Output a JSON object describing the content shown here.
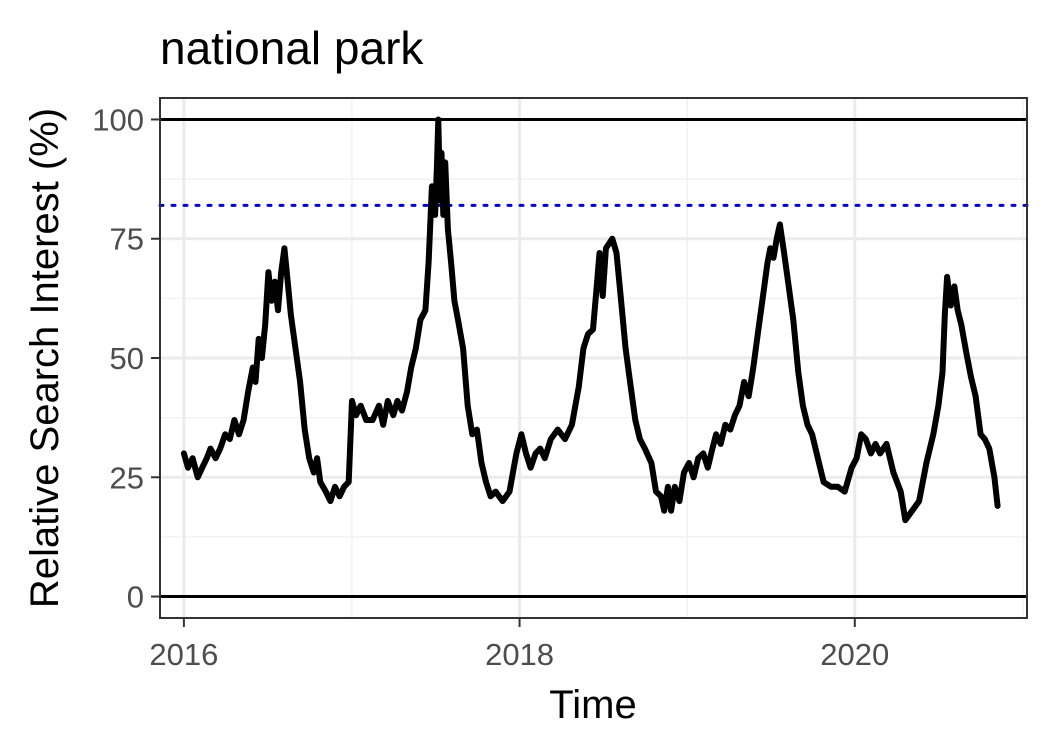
{
  "chart_data": {
    "type": "line",
    "title": "national park",
    "xlabel": "Time",
    "ylabel": "Relative Search Interest (%)",
    "xlim": [
      "2015-11-10",
      "2021-01-10"
    ],
    "ylim": [
      -4.5,
      104.5
    ],
    "x_ticks": [
      {
        "value": "2016-01-01",
        "label": "2016"
      },
      {
        "value": "2018-01-01",
        "label": "2018"
      },
      {
        "value": "2020-01-01",
        "label": "2020"
      }
    ],
    "y_ticks": [
      {
        "value": 0,
        "label": "0"
      },
      {
        "value": 25,
        "label": "25"
      },
      {
        "value": 50,
        "label": "50"
      },
      {
        "value": 75,
        "label": "75"
      },
      {
        "value": 100,
        "label": "100"
      }
    ],
    "reference_lines": [
      {
        "y": 100,
        "style": "solid",
        "color": "#000000"
      },
      {
        "y": 0,
        "style": "solid",
        "color": "#000000"
      },
      {
        "y": 82,
        "style": "dotted",
        "color": "#0000cc"
      }
    ],
    "grid": true,
    "series": [
      {
        "color": "#000000",
        "points": [
          [
            "2016-01-01",
            30
          ],
          [
            "2016-01-10",
            27
          ],
          [
            "2016-01-20",
            29
          ],
          [
            "2016-01-31",
            25
          ],
          [
            "2016-02-10",
            27
          ],
          [
            "2016-02-20",
            29
          ],
          [
            "2016-02-28",
            31
          ],
          [
            "2016-03-10",
            29
          ],
          [
            "2016-03-20",
            31
          ],
          [
            "2016-03-31",
            34
          ],
          [
            "2016-04-10",
            33
          ],
          [
            "2016-04-20",
            37
          ],
          [
            "2016-04-30",
            34
          ],
          [
            "2016-05-10",
            37
          ],
          [
            "2016-05-20",
            43
          ],
          [
            "2016-05-30",
            48
          ],
          [
            "2016-06-05",
            45
          ],
          [
            "2016-06-12",
            54
          ],
          [
            "2016-06-19",
            50
          ],
          [
            "2016-06-26",
            57
          ],
          [
            "2016-07-03",
            68
          ],
          [
            "2016-07-10",
            62
          ],
          [
            "2016-07-17",
            66
          ],
          [
            "2016-07-24",
            60
          ],
          [
            "2016-07-31",
            68
          ],
          [
            "2016-08-07",
            73
          ],
          [
            "2016-08-14",
            66
          ],
          [
            "2016-08-21",
            59
          ],
          [
            "2016-08-31",
            52
          ],
          [
            "2016-09-10",
            45
          ],
          [
            "2016-09-20",
            35
          ],
          [
            "2016-09-30",
            29
          ],
          [
            "2016-10-10",
            26
          ],
          [
            "2016-10-17",
            29
          ],
          [
            "2016-10-24",
            24
          ],
          [
            "2016-11-05",
            22
          ],
          [
            "2016-11-15",
            20
          ],
          [
            "2016-11-25",
            23
          ],
          [
            "2016-12-05",
            21
          ],
          [
            "2016-12-15",
            23
          ],
          [
            "2016-12-25",
            24
          ],
          [
            "2017-01-01",
            41
          ],
          [
            "2017-01-10",
            38
          ],
          [
            "2017-01-20",
            40
          ],
          [
            "2017-02-01",
            37
          ],
          [
            "2017-02-15",
            37
          ],
          [
            "2017-03-01",
            40
          ],
          [
            "2017-03-10",
            36
          ],
          [
            "2017-03-20",
            41
          ],
          [
            "2017-04-01",
            38
          ],
          [
            "2017-04-10",
            41
          ],
          [
            "2017-04-20",
            39
          ],
          [
            "2017-05-01",
            43
          ],
          [
            "2017-05-10",
            48
          ],
          [
            "2017-05-20",
            52
          ],
          [
            "2017-05-30",
            58
          ],
          [
            "2017-06-10",
            60
          ],
          [
            "2017-06-17",
            70
          ],
          [
            "2017-06-24",
            86
          ],
          [
            "2017-07-01",
            80
          ],
          [
            "2017-07-05",
            90
          ],
          [
            "2017-07-08",
            100
          ],
          [
            "2017-07-12",
            83
          ],
          [
            "2017-07-15",
            93
          ],
          [
            "2017-07-19",
            80
          ],
          [
            "2017-07-23",
            91
          ],
          [
            "2017-07-29",
            77
          ],
          [
            "2017-08-05",
            70
          ],
          [
            "2017-08-12",
            62
          ],
          [
            "2017-08-20",
            58
          ],
          [
            "2017-08-31",
            52
          ],
          [
            "2017-09-10",
            40
          ],
          [
            "2017-09-20",
            34
          ],
          [
            "2017-09-30",
            35
          ],
          [
            "2017-10-10",
            28
          ],
          [
            "2017-10-20",
            24
          ],
          [
            "2017-10-30",
            21
          ],
          [
            "2017-11-10",
            22
          ],
          [
            "2017-11-25",
            20
          ],
          [
            "2017-12-10",
            22
          ],
          [
            "2017-12-25",
            30
          ],
          [
            "2018-01-05",
            34
          ],
          [
            "2018-01-15",
            30
          ],
          [
            "2018-01-25",
            27
          ],
          [
            "2018-02-05",
            30
          ],
          [
            "2018-02-15",
            31
          ],
          [
            "2018-02-25",
            29
          ],
          [
            "2018-03-10",
            33
          ],
          [
            "2018-03-25",
            35
          ],
          [
            "2018-04-10",
            33
          ],
          [
            "2018-04-25",
            36
          ],
          [
            "2018-05-10",
            44
          ],
          [
            "2018-05-20",
            52
          ],
          [
            "2018-05-30",
            55
          ],
          [
            "2018-06-10",
            56
          ],
          [
            "2018-06-17",
            64
          ],
          [
            "2018-06-24",
            72
          ],
          [
            "2018-07-01",
            63
          ],
          [
            "2018-07-08",
            73
          ],
          [
            "2018-07-15",
            74
          ],
          [
            "2018-07-22",
            75
          ],
          [
            "2018-07-31",
            72
          ],
          [
            "2018-08-10",
            62
          ],
          [
            "2018-08-20",
            52
          ],
          [
            "2018-08-31",
            44
          ],
          [
            "2018-09-10",
            37
          ],
          [
            "2018-09-20",
            33
          ],
          [
            "2018-10-01",
            31
          ],
          [
            "2018-10-15",
            28
          ],
          [
            "2018-10-25",
            22
          ],
          [
            "2018-11-05",
            21
          ],
          [
            "2018-11-12",
            18
          ],
          [
            "2018-11-20",
            23
          ],
          [
            "2018-11-27",
            18
          ],
          [
            "2018-12-05",
            23
          ],
          [
            "2018-12-15",
            20
          ],
          [
            "2018-12-25",
            26
          ],
          [
            "2019-01-05",
            28
          ],
          [
            "2019-01-15",
            25
          ],
          [
            "2019-01-25",
            29
          ],
          [
            "2019-02-05",
            30
          ],
          [
            "2019-02-15",
            27
          ],
          [
            "2019-02-25",
            31
          ],
          [
            "2019-03-05",
            34
          ],
          [
            "2019-03-15",
            32
          ],
          [
            "2019-03-25",
            36
          ],
          [
            "2019-04-05",
            35
          ],
          [
            "2019-04-15",
            38
          ],
          [
            "2019-04-25",
            40
          ],
          [
            "2019-05-05",
            45
          ],
          [
            "2019-05-15",
            42
          ],
          [
            "2019-05-25",
            48
          ],
          [
            "2019-06-05",
            56
          ],
          [
            "2019-06-15",
            63
          ],
          [
            "2019-06-25",
            70
          ],
          [
            "2019-07-01",
            73
          ],
          [
            "2019-07-08",
            71
          ],
          [
            "2019-07-15",
            75
          ],
          [
            "2019-07-22",
            78
          ],
          [
            "2019-07-31",
            72
          ],
          [
            "2019-08-10",
            65
          ],
          [
            "2019-08-20",
            58
          ],
          [
            "2019-08-31",
            47
          ],
          [
            "2019-09-10",
            40
          ],
          [
            "2019-09-20",
            36
          ],
          [
            "2019-09-30",
            34
          ],
          [
            "2019-10-10",
            30
          ],
          [
            "2019-10-25",
            24
          ],
          [
            "2019-11-10",
            23
          ],
          [
            "2019-11-25",
            23
          ],
          [
            "2019-12-10",
            22
          ],
          [
            "2019-12-25",
            27
          ],
          [
            "2020-01-05",
            29
          ],
          [
            "2020-01-15",
            34
          ],
          [
            "2020-01-25",
            33
          ],
          [
            "2020-02-05",
            30
          ],
          [
            "2020-02-15",
            32
          ],
          [
            "2020-02-25",
            30
          ],
          [
            "2020-03-10",
            32
          ],
          [
            "2020-03-25",
            26
          ],
          [
            "2020-04-10",
            22
          ],
          [
            "2020-04-20",
            16
          ],
          [
            "2020-05-05",
            18
          ],
          [
            "2020-05-20",
            20
          ],
          [
            "2020-06-05",
            28
          ],
          [
            "2020-06-20",
            34
          ],
          [
            "2020-07-01",
            40
          ],
          [
            "2020-07-10",
            47
          ],
          [
            "2020-07-15",
            59
          ],
          [
            "2020-07-20",
            67
          ],
          [
            "2020-07-28",
            61
          ],
          [
            "2020-08-05",
            65
          ],
          [
            "2020-08-12",
            60
          ],
          [
            "2020-08-20",
            57
          ],
          [
            "2020-08-31",
            51
          ],
          [
            "2020-09-10",
            46
          ],
          [
            "2020-09-20",
            42
          ],
          [
            "2020-10-01",
            34
          ],
          [
            "2020-10-10",
            33
          ],
          [
            "2020-10-20",
            31
          ],
          [
            "2020-10-31",
            25
          ],
          [
            "2020-11-07",
            19
          ]
        ]
      }
    ]
  }
}
